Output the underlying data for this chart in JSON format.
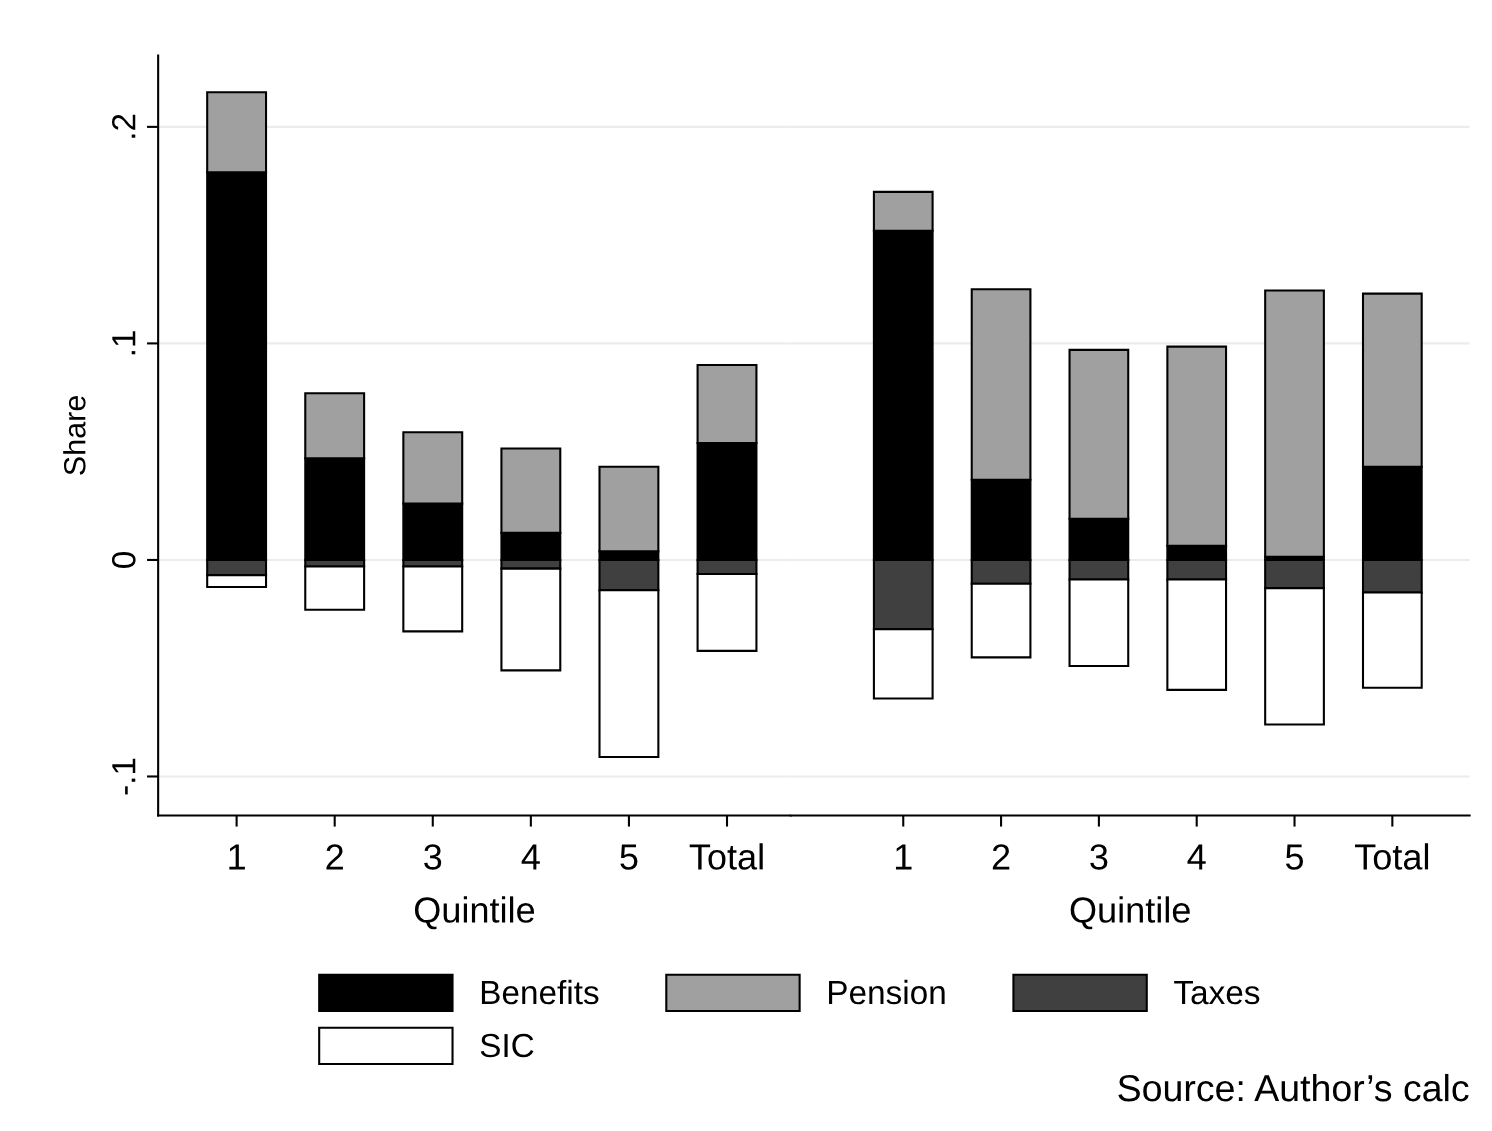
{
  "chart_data": [
    {
      "type": "bar",
      "stacked": true,
      "xlabel": "Quintile",
      "ylabel": "Share",
      "categories": [
        "1",
        "2",
        "3",
        "4",
        "5",
        "Total"
      ],
      "ylim": [
        -0.118,
        0.233
      ],
      "yticks": [
        {
          "value": -0.1,
          "label": "-.1"
        },
        0,
        {
          "value": 0.1,
          "label": ".1"
        },
        {
          "value": 0.2,
          "label": ".2"
        }
      ],
      "grid": "y",
      "legend": "bottom",
      "series": [
        {
          "name": "Benefits",
          "color": "#000000",
          "values": [
            0.179,
            0.047,
            0.026,
            0.0125,
            0.004,
            0.054
          ]
        },
        {
          "name": "Pension",
          "color": "#a0a0a0",
          "values": [
            0.037,
            0.03,
            0.033,
            0.039,
            0.039,
            0.036
          ]
        },
        {
          "name": "Taxes",
          "color": "#404040",
          "values": [
            -0.007,
            -0.003,
            -0.003,
            -0.004,
            -0.014,
            -0.0065
          ]
        },
        {
          "name": "SIC",
          "color": "#ffffff",
          "values": [
            -0.0055,
            -0.02,
            -0.03,
            -0.047,
            -0.077,
            -0.0355
          ]
        }
      ]
    },
    {
      "type": "bar",
      "stacked": true,
      "xlabel": "Quintile",
      "categories": [
        "1",
        "2",
        "3",
        "4",
        "5",
        "Total"
      ],
      "tick_labels": "x",
      "ylim": [
        -0.118,
        0.233
      ],
      "yticks": [
        -0.1,
        0,
        0.1,
        0.2
      ],
      "grid": "y",
      "annotations": [
        "Source: Author’s calc"
      ],
      "series": [
        {
          "color": "#000000",
          "values": [
            0.152,
            0.037,
            0.019,
            0.0065,
            0.0014,
            0.043
          ]
        },
        {
          "color": "#a0a0a0",
          "values": [
            0.018,
            0.088,
            0.078,
            0.092,
            0.123,
            0.08
          ]
        },
        {
          "color": "#404040",
          "values": [
            -0.032,
            -0.011,
            -0.009,
            -0.009,
            -0.013,
            -0.015
          ]
        },
        {
          "color": "#ffffff",
          "values": [
            -0.032,
            -0.034,
            -0.04,
            -0.051,
            -0.063,
            -0.044
          ]
        }
      ]
    }
  ]
}
